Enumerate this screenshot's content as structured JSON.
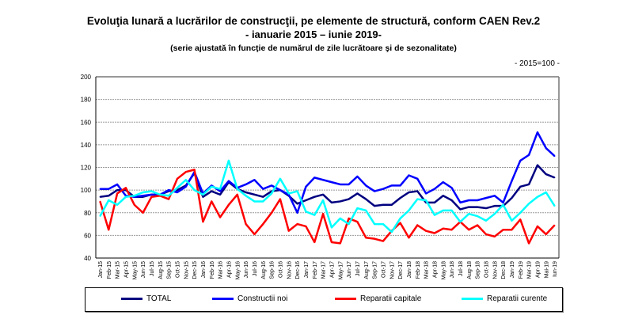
{
  "chart_data": {
    "type": "line",
    "title": "Evoluţia lunară a lucrărilor de construcţii, pe elemente de structură, conform CAEN Rev.2",
    "subtitle": "- ianuarie 2015 – iunie 2019-",
    "note": "(serie ajustată în funcţie de numărul de zile lucrătoare şi de sezonalitate)",
    "base_label": "- 2015=100 -",
    "ylim": [
      40,
      200
    ],
    "yticks": [
      40,
      60,
      80,
      100,
      120,
      140,
      160,
      180,
      200
    ],
    "grid": true,
    "legend_position": "bottom",
    "categories": [
      "Jan-15",
      "Feb-15",
      "Mar-15",
      "Apr-15",
      "May-15",
      "Jun-15",
      "Jul-15",
      "Aug-15",
      "Sep-15",
      "Oct-15",
      "Nov-15",
      "Dec-15",
      "Jan-16",
      "Feb-16",
      "Mar-16",
      "Apr-16",
      "May-16",
      "Jun-16",
      "Jul-16",
      "Aug-16",
      "Sep-16",
      "Oct-16",
      "Nov-16",
      "Dec-16",
      "Jan-17",
      "Feb-17",
      "Mar-17",
      "Apr-17",
      "May-17",
      "Jun-17",
      "Jul-17",
      "Aug-17",
      "Sep-17",
      "Oct-17",
      "Nov-17",
      "Dec-17",
      "Jan-18",
      "Feb-18",
      "Mar-18",
      "Apr-18",
      "May-18",
      "Jun-18",
      "Jul-18",
      "Aug-18",
      "Sep-18",
      "Oct-18",
      "Nov-18",
      "Dec-18",
      "Jan-19",
      "Feb-19",
      "Mar-19",
      "Apr-19",
      "Mai-19",
      "Iun-19"
    ],
    "series": [
      {
        "name": "TOTAL",
        "color": "#000080",
        "values": [
          94,
          95,
          100,
          100,
          94,
          94,
          96,
          96,
          99,
          100,
          104,
          115,
          94,
          99,
          96,
          107,
          101,
          98,
          96,
          94,
          99,
          100,
          95,
          88,
          91,
          94,
          96,
          89,
          90,
          92,
          97,
          92,
          86,
          87,
          87,
          93,
          98,
          99,
          89,
          89,
          95,
          91,
          83,
          85,
          85,
          84,
          86,
          86,
          93,
          103,
          105,
          122,
          114,
          111
        ]
      },
      {
        "name": "Constructii noi",
        "color": "#0000ff",
        "values": [
          101,
          101,
          105,
          95,
          94,
          95,
          96,
          96,
          100,
          98,
          103,
          116,
          97,
          104,
          99,
          108,
          102,
          105,
          109,
          101,
          104,
          100,
          96,
          80,
          103,
          111,
          109,
          107,
          105,
          105,
          112,
          104,
          99,
          101,
          104,
          104,
          113,
          110,
          97,
          101,
          107,
          102,
          89,
          91,
          91,
          93,
          95,
          89,
          108,
          126,
          131,
          151,
          137,
          130
        ]
      },
      {
        "name": "Reparatii capitale",
        "color": "#ff0000",
        "values": [
          90,
          65,
          97,
          102,
          87,
          80,
          94,
          95,
          92,
          110,
          116,
          118,
          72,
          90,
          76,
          87,
          96,
          70,
          61,
          70,
          80,
          92,
          64,
          70,
          68,
          54,
          79,
          54,
          53,
          75,
          72,
          58,
          57,
          55,
          64,
          71,
          58,
          69,
          64,
          62,
          66,
          65,
          72,
          65,
          69,
          61,
          59,
          65,
          65,
          74,
          53,
          68,
          61,
          69
        ]
      },
      {
        "name": "Reparatii curente",
        "color": "#00ffff",
        "values": [
          77,
          91,
          87,
          94,
          95,
          98,
          99,
          96,
          95,
          102,
          109,
          100,
          96,
          103,
          101,
          126,
          101,
          95,
          90,
          90,
          97,
          110,
          97,
          99,
          81,
          78,
          91,
          67,
          75,
          70,
          84,
          82,
          70,
          70,
          63,
          75,
          82,
          92,
          91,
          78,
          82,
          82,
          72,
          79,
          77,
          73,
          79,
          87,
          73,
          80,
          88,
          94,
          98,
          86
        ]
      }
    ]
  }
}
